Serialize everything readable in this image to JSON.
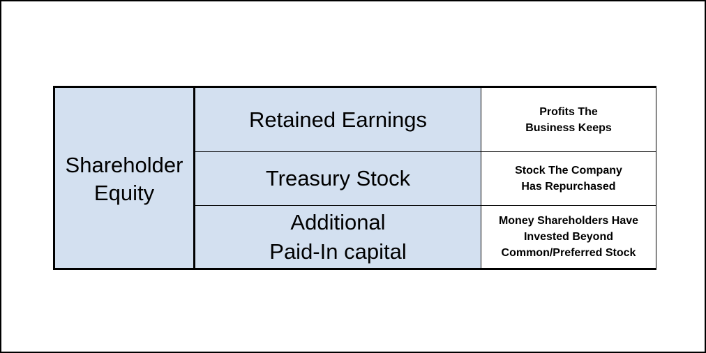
{
  "diagram": {
    "root": {
      "label": "Shareholder\nEquity"
    },
    "rows": [
      {
        "component": "Retained Earnings",
        "description": "Profits The\nBusiness Keeps"
      },
      {
        "component": "Treasury Stock",
        "description": "Stock The Company\nHas Repurchased"
      },
      {
        "component": "Additional\nPaid-In capital",
        "description": "Money Shareholders Have\nInvested Beyond\nCommon/Preferred Stock"
      }
    ],
    "colors": {
      "component_fill": "#d3e0f0",
      "description_fill": "#ffffff",
      "border": "#000000"
    }
  }
}
